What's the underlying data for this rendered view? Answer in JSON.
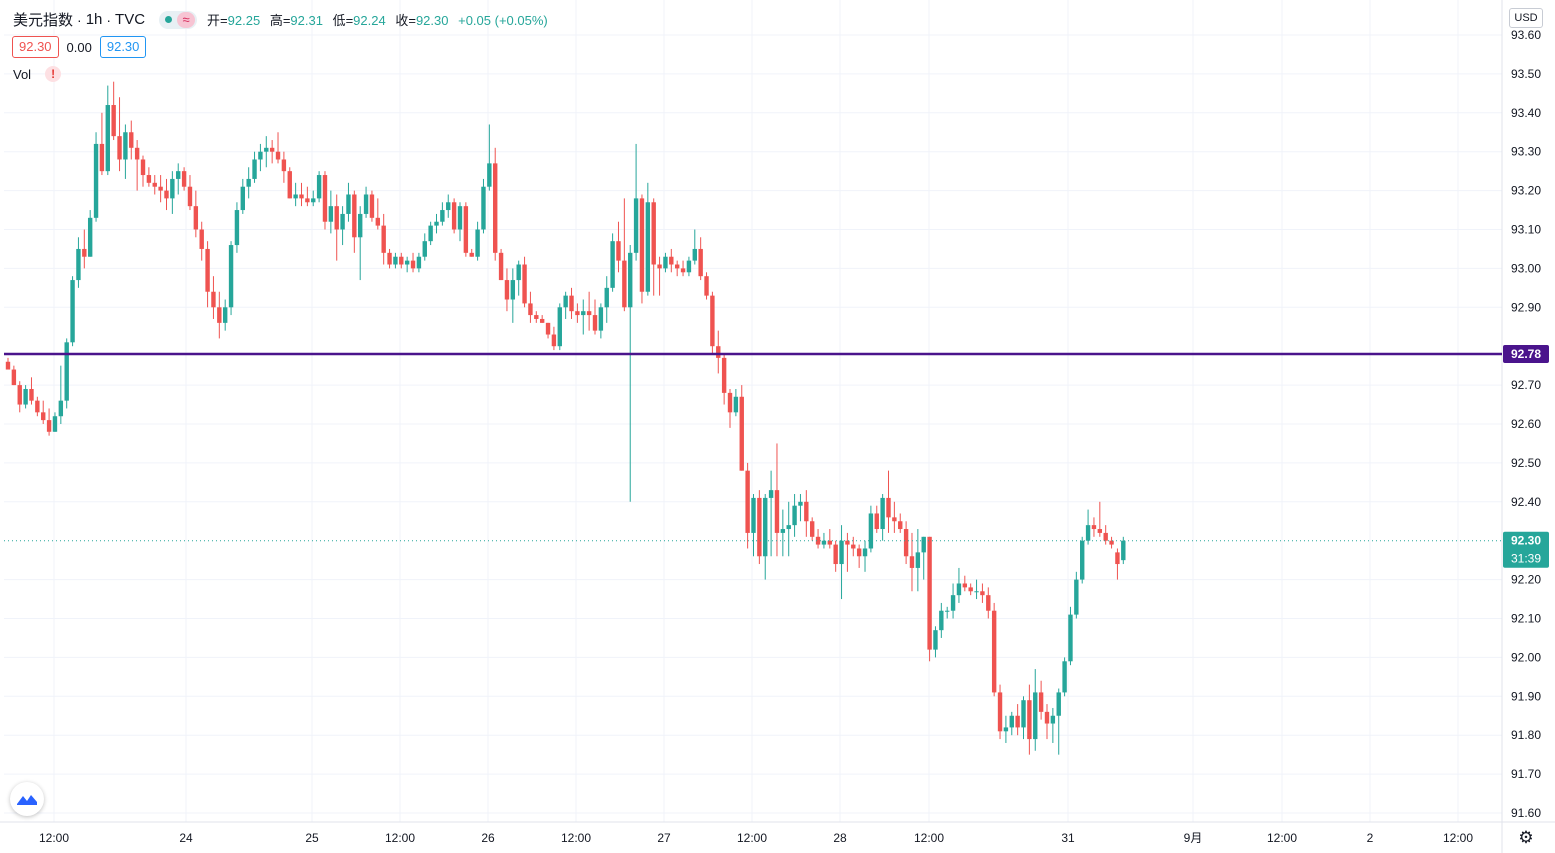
{
  "legend": {
    "symbol": "美元指数",
    "interval": "1h",
    "exchange": "TVC",
    "open_label": "开=",
    "open": "92.25",
    "high_label": "高=",
    "high": "92.31",
    "low_label": "低=",
    "low": "92.24",
    "close_label": "收=",
    "close": "92.30",
    "change": "+0.05 (+0.05%)",
    "bid": "92.30",
    "spread": "0.00",
    "ask": "92.30",
    "volume_label": "Vol",
    "volume_warning": "!"
  },
  "price_scale": {
    "currency": "USD"
  },
  "colors": {
    "up": "#26a69a",
    "down": "#ef5350",
    "level_line": "#4a148c",
    "grid": "#f0f3fa",
    "text": "#131722"
  },
  "icons": {
    "logo": "tradingview-logo-icon",
    "settings": "gear-icon"
  },
  "chart_data": {
    "type": "candlestick",
    "title": "美元指数",
    "interval": "1h",
    "ylim": [
      91.57,
      93.64
    ],
    "y_ticks": [
      "93.60",
      "93.50",
      "93.40",
      "93.30",
      "93.20",
      "93.10",
      "93.00",
      "92.90",
      "92.70",
      "92.60",
      "92.50",
      "92.40",
      "92.20",
      "92.10",
      "92.00",
      "91.90",
      "91.80",
      "91.70",
      "91.60"
    ],
    "x_ticks": [
      "12:00",
      "24",
      "25",
      "12:00",
      "26",
      "12:00",
      "27",
      "12:00",
      "28",
      "12:00",
      "31",
      "9月",
      "12:00",
      "2",
      "12:00"
    ],
    "horizontal_line": {
      "value": 92.78,
      "label": "92.78"
    },
    "last_price": {
      "value": 92.3,
      "label": "92.30",
      "countdown": "31:39"
    },
    "candles": [
      [
        92.76,
        92.77,
        92.74,
        92.74
      ],
      [
        92.74,
        92.75,
        92.7,
        92.7
      ],
      [
        92.7,
        92.71,
        92.63,
        92.65
      ],
      [
        92.65,
        92.7,
        92.64,
        92.69
      ],
      [
        92.69,
        92.72,
        92.65,
        92.66
      ],
      [
        92.66,
        92.67,
        92.62,
        92.63
      ],
      [
        92.63,
        92.66,
        92.6,
        92.61
      ],
      [
        92.61,
        92.64,
        92.57,
        92.58
      ],
      [
        92.58,
        92.63,
        92.58,
        92.62
      ],
      [
        92.62,
        92.75,
        92.6,
        92.66
      ],
      [
        92.66,
        92.82,
        92.64,
        92.81
      ],
      [
        92.81,
        92.98,
        92.8,
        92.97
      ],
      [
        92.97,
        93.08,
        92.95,
        93.05
      ],
      [
        93.05,
        93.1,
        93.0,
        93.03
      ],
      [
        93.03,
        93.15,
        93.03,
        93.13
      ],
      [
        93.13,
        93.35,
        93.12,
        93.32
      ],
      [
        93.32,
        93.4,
        93.24,
        93.25
      ],
      [
        93.25,
        93.47,
        93.24,
        93.42
      ],
      [
        93.42,
        93.48,
        93.33,
        93.34
      ],
      [
        93.34,
        93.44,
        93.25,
        93.28
      ],
      [
        93.28,
        93.37,
        93.23,
        93.35
      ],
      [
        93.35,
        93.38,
        93.28,
        93.31
      ],
      [
        93.31,
        93.33,
        93.2,
        93.28
      ],
      [
        93.28,
        93.29,
        93.21,
        93.24
      ],
      [
        93.24,
        93.26,
        93.21,
        93.22
      ],
      [
        93.22,
        93.24,
        93.19,
        93.21
      ],
      [
        93.21,
        93.24,
        93.17,
        93.2
      ],
      [
        93.2,
        93.23,
        93.15,
        93.18
      ],
      [
        93.18,
        93.25,
        93.14,
        93.23
      ],
      [
        93.23,
        93.27,
        93.19,
        93.25
      ],
      [
        93.25,
        93.26,
        93.2,
        93.21
      ],
      [
        93.21,
        93.24,
        93.15,
        93.16
      ],
      [
        93.16,
        93.2,
        93.08,
        93.1
      ],
      [
        93.1,
        93.12,
        93.02,
        93.05
      ],
      [
        93.05,
        93.07,
        92.9,
        92.94
      ],
      [
        92.94,
        92.98,
        92.87,
        92.9
      ],
      [
        92.9,
        92.94,
        92.82,
        92.86
      ],
      [
        92.86,
        92.92,
        92.84,
        92.9
      ],
      [
        92.9,
        93.07,
        92.88,
        93.06
      ],
      [
        93.06,
        93.17,
        93.04,
        93.15
      ],
      [
        93.15,
        93.23,
        93.14,
        93.21
      ],
      [
        93.21,
        93.26,
        93.18,
        93.23
      ],
      [
        93.23,
        93.3,
        93.22,
        93.28
      ],
      [
        93.28,
        93.32,
        93.25,
        93.3
      ],
      [
        93.3,
        93.34,
        93.26,
        93.31
      ],
      [
        93.31,
        93.33,
        93.27,
        93.3
      ],
      [
        93.3,
        93.35,
        93.27,
        93.28
      ],
      [
        93.28,
        93.3,
        93.22,
        93.25
      ],
      [
        93.25,
        93.26,
        93.18,
        93.18
      ],
      [
        93.18,
        93.22,
        93.16,
        93.19
      ],
      [
        93.19,
        93.22,
        93.16,
        93.18
      ],
      [
        93.18,
        93.21,
        93.16,
        93.17
      ],
      [
        93.17,
        93.2,
        93.16,
        93.18
      ],
      [
        93.18,
        93.25,
        93.17,
        93.24
      ],
      [
        93.24,
        93.25,
        93.1,
        93.12
      ],
      [
        93.12,
        93.2,
        93.09,
        93.16
      ],
      [
        93.16,
        93.19,
        93.02,
        93.1
      ],
      [
        93.1,
        93.16,
        93.06,
        93.14
      ],
      [
        93.14,
        93.22,
        93.12,
        93.19
      ],
      [
        93.19,
        93.2,
        93.04,
        93.08
      ],
      [
        93.08,
        93.16,
        92.97,
        93.14
      ],
      [
        93.14,
        93.21,
        93.13,
        93.19
      ],
      [
        93.19,
        93.2,
        93.12,
        93.13
      ],
      [
        93.13,
        93.18,
        93.1,
        93.11
      ],
      [
        93.11,
        93.14,
        93.01,
        93.04
      ],
      [
        93.04,
        93.05,
        93.0,
        93.01
      ],
      [
        93.01,
        93.04,
        93.0,
        93.03
      ],
      [
        93.03,
        93.04,
        93.0,
        93.01
      ],
      [
        93.01,
        93.03,
        92.99,
        93.02
      ],
      [
        93.02,
        93.04,
        92.99,
        93.0
      ],
      [
        93.0,
        93.04,
        92.99,
        93.03
      ],
      [
        93.03,
        93.09,
        93.02,
        93.07
      ],
      [
        93.07,
        93.12,
        93.06,
        93.11
      ],
      [
        93.11,
        93.14,
        93.09,
        93.12
      ],
      [
        93.12,
        93.17,
        93.11,
        93.15
      ],
      [
        93.15,
        93.19,
        93.13,
        93.17
      ],
      [
        93.17,
        93.18,
        93.09,
        93.1
      ],
      [
        93.1,
        93.17,
        93.07,
        93.16
      ],
      [
        93.16,
        93.17,
        93.03,
        93.04
      ],
      [
        93.04,
        93.05,
        93.03,
        93.03
      ],
      [
        93.03,
        93.12,
        93.02,
        93.1
      ],
      [
        93.1,
        93.23,
        93.09,
        93.21
      ],
      [
        93.21,
        93.37,
        93.2,
        93.27
      ],
      [
        93.27,
        93.31,
        93.02,
        93.04
      ],
      [
        93.04,
        93.05,
        92.97,
        92.97
      ],
      [
        92.97,
        93.0,
        92.89,
        92.92
      ],
      [
        92.92,
        93.0,
        92.86,
        92.97
      ],
      [
        92.97,
        93.02,
        92.93,
        93.01
      ],
      [
        93.01,
        93.03,
        92.9,
        92.91
      ],
      [
        92.91,
        92.94,
        92.86,
        92.88
      ],
      [
        92.88,
        92.89,
        92.86,
        92.87
      ],
      [
        92.87,
        92.88,
        92.86,
        92.86
      ],
      [
        92.86,
        92.86,
        92.82,
        92.83
      ],
      [
        92.83,
        92.85,
        92.79,
        92.8
      ],
      [
        92.8,
        92.91,
        92.79,
        92.9
      ],
      [
        92.9,
        92.94,
        92.87,
        92.93
      ],
      [
        92.93,
        92.95,
        92.87,
        92.89
      ],
      [
        92.89,
        92.91,
        92.86,
        92.88
      ],
      [
        92.88,
        92.92,
        92.83,
        92.89
      ],
      [
        92.89,
        92.94,
        92.84,
        92.88
      ],
      [
        92.88,
        92.92,
        92.83,
        92.84
      ],
      [
        92.84,
        92.91,
        92.82,
        92.9
      ],
      [
        92.9,
        92.98,
        92.86,
        92.95
      ],
      [
        92.95,
        93.09,
        92.94,
        93.07
      ],
      [
        93.07,
        93.12,
        92.99,
        93.02
      ],
      [
        93.02,
        93.18,
        92.89,
        92.9
      ],
      [
        92.9,
        93.06,
        92.4,
        93.04
      ],
      [
        93.04,
        93.32,
        93.02,
        93.18
      ],
      [
        93.18,
        93.19,
        92.91,
        92.94
      ],
      [
        92.94,
        93.22,
        92.93,
        93.17
      ],
      [
        93.17,
        93.18,
        92.93,
        93.01
      ],
      [
        93.01,
        93.03,
        92.93,
        93.0
      ],
      [
        93.0,
        93.04,
        92.99,
        93.03
      ],
      [
        93.03,
        93.05,
        92.99,
        93.01
      ],
      [
        93.01,
        93.02,
        92.98,
        93.0
      ],
      [
        93.0,
        93.02,
        92.98,
        92.99
      ],
      [
        92.99,
        93.03,
        92.98,
        93.02
      ],
      [
        93.02,
        93.1,
        93.01,
        93.05
      ],
      [
        93.05,
        93.08,
        92.97,
        92.98
      ],
      [
        92.98,
        92.99,
        92.92,
        92.93
      ],
      [
        92.93,
        92.94,
        92.78,
        92.8
      ],
      [
        92.8,
        92.84,
        92.73,
        92.77
      ],
      [
        92.77,
        92.78,
        92.65,
        92.68
      ],
      [
        92.68,
        92.69,
        92.59,
        92.63
      ],
      [
        92.63,
        92.69,
        92.62,
        92.67
      ],
      [
        92.67,
        92.7,
        92.48,
        92.48
      ],
      [
        92.48,
        92.5,
        92.28,
        92.32
      ],
      [
        92.32,
        92.42,
        92.26,
        92.41
      ],
      [
        92.41,
        92.43,
        92.24,
        92.26
      ],
      [
        92.26,
        92.42,
        92.2,
        92.41
      ],
      [
        92.41,
        92.48,
        92.26,
        92.43
      ],
      [
        92.43,
        92.55,
        92.26,
        92.32
      ],
      [
        92.32,
        92.38,
        92.26,
        92.33
      ],
      [
        92.33,
        92.4,
        92.26,
        92.34
      ],
      [
        92.34,
        92.42,
        92.31,
        92.39
      ],
      [
        92.39,
        92.42,
        92.35,
        92.4
      ],
      [
        92.4,
        92.43,
        92.31,
        92.35
      ],
      [
        92.35,
        92.36,
        92.3,
        92.31
      ],
      [
        92.31,
        92.33,
        92.28,
        92.29
      ],
      [
        92.29,
        92.32,
        92.28,
        92.3
      ],
      [
        92.3,
        92.33,
        92.28,
        92.29
      ],
      [
        92.29,
        92.3,
        92.22,
        92.24
      ],
      [
        92.24,
        92.34,
        92.15,
        92.3
      ],
      [
        92.3,
        92.32,
        92.22,
        92.29
      ],
      [
        92.29,
        92.31,
        92.26,
        92.28
      ],
      [
        92.28,
        92.29,
        92.23,
        92.26
      ],
      [
        92.26,
        92.3,
        92.22,
        92.28
      ],
      [
        92.28,
        92.39,
        92.27,
        92.37
      ],
      [
        92.37,
        92.39,
        92.32,
        92.33
      ],
      [
        92.33,
        92.42,
        92.3,
        92.41
      ],
      [
        92.41,
        92.48,
        92.32,
        92.36
      ],
      [
        92.36,
        92.4,
        92.32,
        92.35
      ],
      [
        92.35,
        92.37,
        92.32,
        92.33
      ],
      [
        92.33,
        92.35,
        92.24,
        92.26
      ],
      [
        92.26,
        92.32,
        92.17,
        92.23
      ],
      [
        92.23,
        92.33,
        92.17,
        92.27
      ],
      [
        92.27,
        92.31,
        92.2,
        92.31
      ],
      [
        92.31,
        92.31,
        91.99,
        92.02
      ],
      [
        92.02,
        92.08,
        92.0,
        92.07
      ],
      [
        92.07,
        92.14,
        92.05,
        92.12
      ],
      [
        92.12,
        92.13,
        92.1,
        92.12
      ],
      [
        92.12,
        92.19,
        92.1,
        92.16
      ],
      [
        92.16,
        92.23,
        92.14,
        92.19
      ],
      [
        92.19,
        92.21,
        92.17,
        92.18
      ],
      [
        92.18,
        92.19,
        92.16,
        92.17
      ],
      [
        92.17,
        92.2,
        92.15,
        92.17
      ],
      [
        92.17,
        92.19,
        92.14,
        92.16
      ],
      [
        92.16,
        92.18,
        92.1,
        92.12
      ],
      [
        92.12,
        92.14,
        91.9,
        91.91
      ],
      [
        91.91,
        91.93,
        91.79,
        91.81
      ],
      [
        91.81,
        91.85,
        91.78,
        91.82
      ],
      [
        91.82,
        91.86,
        91.8,
        91.85
      ],
      [
        91.85,
        91.88,
        91.8,
        91.82
      ],
      [
        91.82,
        91.9,
        91.79,
        91.89
      ],
      [
        91.89,
        91.93,
        91.75,
        91.79
      ],
      [
        91.79,
        91.97,
        91.76,
        91.91
      ],
      [
        91.91,
        91.94,
        91.84,
        91.86
      ],
      [
        91.86,
        91.88,
        91.79,
        91.83
      ],
      [
        91.83,
        91.87,
        91.78,
        91.85
      ],
      [
        91.85,
        91.92,
        91.75,
        91.91
      ],
      [
        91.91,
        92.0,
        91.9,
        91.99
      ],
      [
        91.99,
        92.13,
        91.98,
        92.11
      ],
      [
        92.11,
        92.22,
        92.1,
        92.2
      ],
      [
        92.2,
        92.31,
        92.19,
        92.3
      ],
      [
        92.3,
        92.38,
        92.29,
        92.34
      ],
      [
        92.34,
        92.36,
        92.31,
        92.33
      ],
      [
        92.33,
        92.4,
        92.31,
        92.32
      ],
      [
        92.32,
        92.34,
        92.29,
        92.3
      ],
      [
        92.3,
        92.31,
        92.28,
        92.29
      ],
      [
        92.27,
        92.28,
        92.2,
        92.24
      ],
      [
        92.25,
        92.31,
        92.24,
        92.3
      ]
    ]
  }
}
